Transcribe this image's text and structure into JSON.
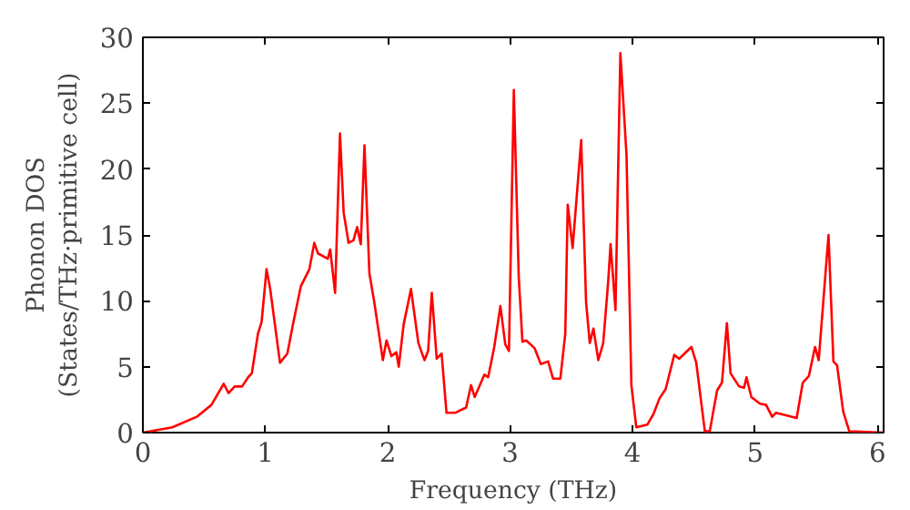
{
  "chart_data": {
    "type": "line",
    "xlabel": "Frequency (THz)",
    "ylabel": "Phonon DOS\n(States/THz·primitive cell)",
    "xlim": [
      0,
      6.05
    ],
    "ylim": [
      0,
      30
    ],
    "xticks": [
      0,
      1,
      2,
      3,
      4,
      5,
      6
    ],
    "yticks": [
      0,
      5,
      10,
      15,
      20,
      25,
      30
    ],
    "grid": false,
    "series": [
      {
        "color": "#ff0000",
        "x": [
          0,
          0.24,
          0.44,
          0.56,
          0.66,
          0.7,
          0.75,
          0.81,
          0.86,
          0.89,
          0.94,
          0.97,
          1.01,
          1.04,
          1.12,
          1.18,
          1.23,
          1.29,
          1.36,
          1.4,
          1.43,
          1.51,
          1.53,
          1.57,
          1.61,
          1.64,
          1.68,
          1.72,
          1.75,
          1.78,
          1.81,
          1.85,
          1.89,
          1.96,
          1.99,
          2.03,
          2.07,
          2.09,
          2.13,
          2.19,
          2.25,
          2.3,
          2.33,
          2.36,
          2.4,
          2.44,
          2.48,
          2.55,
          2.64,
          2.68,
          2.71,
          2.79,
          2.82,
          2.87,
          2.92,
          2.96,
          2.99,
          3.03,
          3.07,
          3.1,
          3.13,
          3.2,
          3.25,
          3.31,
          3.35,
          3.41,
          3.45,
          3.47,
          3.51,
          3.58,
          3.62,
          3.65,
          3.68,
          3.72,
          3.76,
          3.8,
          3.82,
          3.86,
          3.9,
          3.95,
          3.99,
          4.03,
          4.12,
          4.17,
          4.22,
          4.27,
          4.34,
          4.38,
          4.48,
          4.52,
          4.59,
          4.63,
          4.69,
          4.73,
          4.77,
          4.8,
          4.87,
          4.91,
          4.93,
          4.97,
          5.04,
          5.09,
          5.14,
          5.17,
          5.34,
          5.39,
          5.44,
          5.49,
          5.52,
          5.6,
          5.64,
          5.67,
          5.72,
          5.77,
          6.05
        ],
        "values": [
          0,
          0.4,
          1.2,
          2.1,
          3.7,
          3.0,
          3.5,
          3.5,
          4.2,
          4.5,
          7.5,
          8.4,
          12.4,
          10.9,
          5.3,
          6.0,
          8.4,
          11.1,
          12.4,
          14.4,
          13.6,
          13.2,
          13.9,
          10.6,
          22.7,
          16.7,
          14.4,
          14.6,
          15.6,
          14.3,
          21.8,
          12.1,
          9.9,
          5.5,
          7.0,
          5.8,
          6.1,
          5.0,
          8.2,
          10.9,
          6.8,
          5.5,
          6.2,
          10.6,
          5.6,
          6.0,
          1.5,
          1.5,
          1.9,
          3.6,
          2.7,
          4.4,
          4.2,
          6.5,
          9.6,
          6.7,
          6.2,
          26.0,
          11.8,
          6.9,
          7.0,
          6.4,
          5.2,
          5.4,
          4.1,
          4.1,
          7.5,
          17.3,
          14.0,
          22.2,
          9.9,
          6.8,
          7.9,
          5.5,
          6.8,
          11.4,
          14.3,
          9.3,
          28.8,
          21.1,
          3.6,
          0.4,
          0.6,
          1.4,
          2.6,
          3.3,
          5.9,
          5.6,
          6.5,
          5.3,
          0.1,
          0.1,
          3.2,
          3.8,
          8.3,
          4.5,
          3.5,
          3.4,
          4.2,
          2.7,
          2.2,
          2.1,
          1.2,
          1.5,
          1.1,
          3.8,
          4.3,
          6.5,
          5.5,
          15.0,
          5.4,
          5.1,
          1.6,
          0.1,
          0
        ]
      }
    ]
  }
}
